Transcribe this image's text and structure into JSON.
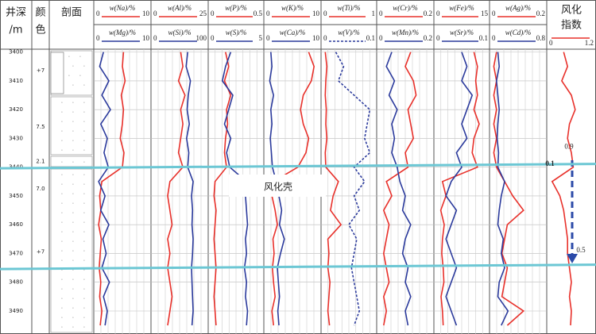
{
  "chart_data": {
    "type": "well-log",
    "ylim": [
      3399,
      3498
    ],
    "yticks": [
      3400,
      3410,
      3420,
      3430,
      3440,
      3450,
      3460,
      3470,
      3480,
      3490
    ],
    "depths": [
      3400,
      3405,
      3410,
      3415,
      3420,
      3425,
      3430,
      3435,
      3440,
      3445,
      3450,
      3455,
      3460,
      3465,
      3470,
      3475,
      3480,
      3485,
      3490,
      3495
    ],
    "depth_header": [
      "井深",
      "/m"
    ],
    "color_header": [
      "颜",
      "色"
    ],
    "section_header": "剖面",
    "layers": [
      {
        "label": "+7",
        "depth": 3406.5
      },
      {
        "label": "7.5",
        "depth": 3426
      },
      {
        "label": "2.1",
        "depth": 3438
      },
      {
        "label": "7.0",
        "depth": 3447.5
      },
      {
        "label": "+7",
        "depth": 3469.5
      }
    ],
    "tracks": [
      {
        "series": [
          {
            "name": "w(Na)/%",
            "xlim": [
              0,
              10
            ],
            "color": "#e8302a",
            "values": [
              5.2,
              5.0,
              5.5,
              4.8,
              5.2,
              5.0,
              4.6,
              5.3,
              5.0,
              1.2,
              0.8,
              1.0,
              0.6,
              1.1,
              0.9,
              0.7,
              1.0,
              0.8,
              1.2,
              0.9
            ]
          },
          {
            "name": "w(Mg)/%",
            "xlim": [
              0,
              10
            ],
            "color": "#2b3a9c",
            "values": [
              1.5,
              0.8,
              2.5,
              1.2,
              2.8,
              1.0,
              2.2,
              1.6,
              2.4,
              0.6,
              1.8,
              1.0,
              2.5,
              1.4,
              2.0,
              1.2,
              2.6,
              1.5,
              2.2,
              1.8
            ]
          }
        ]
      },
      {
        "series": [
          {
            "name": "w(Al)/%",
            "xlim": [
              0,
              25
            ],
            "color": "#e8302a",
            "values": [
              13,
              14,
              12,
              15,
              13,
              14,
              13,
              12,
              14,
              8,
              7,
              8,
              9,
              7,
              8,
              7,
              8,
              9,
              8,
              7
            ]
          },
          {
            "name": "w(Si)/%",
            "xlim": [
              0,
              100
            ],
            "color": "#2b3a9c",
            "values": [
              65,
              62,
              70,
              66,
              64,
              68,
              63,
              67,
              65,
              75,
              72,
              74,
              73,
              75,
              74,
              72,
              73,
              74,
              75,
              73
            ]
          }
        ]
      },
      {
        "series": [
          {
            "name": "w(P)/%",
            "xlim": [
              0,
              0.5
            ],
            "color": "#e8302a",
            "values": [
              0.15,
              0.18,
              0.14,
              0.2,
              0.16,
              0.17,
              0.15,
              0.14,
              0.16,
              0.05,
              0.04,
              0.06,
              0.05,
              0.04,
              0.05,
              0.06,
              0.05,
              0.04,
              0.05,
              0.06
            ]
          },
          {
            "name": "w(S)/%",
            "xlim": [
              0,
              5
            ],
            "color": "#2b3a9c",
            "values": [
              2.0,
              1.5,
              1.2,
              2.2,
              1.8,
              1.4,
              2.0,
              1.6,
              1.9,
              3.5,
              3.4,
              3.5,
              3.6,
              3.4,
              3.5,
              3.3,
              3.5,
              3.4,
              3.6,
              3.5
            ]
          }
        ]
      },
      {
        "series": [
          {
            "name": "w(K)/%",
            "xlim": [
              0,
              10
            ],
            "color": "#e8302a",
            "values": [
              8,
              9,
              8.5,
              7,
              6.5,
              7,
              8,
              7.5,
              6,
              1.5,
              1.2,
              1.8,
              2.2,
              1.4,
              1.6,
              1.3,
              1.5,
              1.8,
              1.2,
              1.5
            ]
          },
          {
            "name": "w(Ca)/%",
            "xlim": [
              0,
              10
            ],
            "color": "#2b3a9c",
            "values": [
              1,
              1.2,
              0.8,
              1.5,
              1,
              1.2,
              0.9,
              1.1,
              1.3,
              2,
              2.5,
              3,
              2.6,
              3.5,
              2.8,
              2.2,
              2.4,
              2.6,
              2.3,
              2.5
            ]
          }
        ]
      },
      {
        "series": [
          {
            "name": "w(Ti)/%",
            "xlim": [
              0,
              1
            ],
            "color": "#e8302a",
            "values": [
              0.05,
              0.08,
              0.06,
              0.05,
              0.07,
              0.06,
              0.08,
              0.05,
              0.06,
              0.3,
              0.2,
              0.15,
              0.35,
              0.1,
              0.12,
              0.1,
              0.14,
              0.12,
              0.1,
              0.13
            ]
          },
          {
            "name": "w(V)/%",
            "xlim": [
              0,
              0.1
            ],
            "color": "#2b3a9c",
            "dash": true,
            "values": [
              0.025,
              0.04,
              0.03,
              0.06,
              0.09,
              0.085,
              0.08,
              0.09,
              0.06,
              0.08,
              0.06,
              0.07,
              0.05,
              0.065,
              0.06,
              0.055,
              0.06,
              0.065,
              0.07,
              0.06
            ]
          }
        ]
      },
      {
        "series": [
          {
            "name": "w(Cr)/%",
            "xlim": [
              0,
              0.2
            ],
            "color": "#e8302a",
            "values": [
              0.12,
              0.1,
              0.13,
              0.14,
              0.11,
              0.12,
              0.13,
              0.1,
              0.11,
              0.03,
              0.05,
              0.02,
              0.04,
              0.03,
              0.02,
              0.03,
              0.04,
              0.02,
              0.03,
              0.02
            ]
          },
          {
            "name": "w(Mn)/%",
            "xlim": [
              0,
              0.2
            ],
            "color": "#2b3a9c",
            "values": [
              0.05,
              0.03,
              0.06,
              0.04,
              0.07,
              0.05,
              0.06,
              0.05,
              0.07,
              0.08,
              0.1,
              0.09,
              0.12,
              0.1,
              0.09,
              0.11,
              0.1,
              0.12,
              0.1,
              0.11
            ]
          }
        ]
      },
      {
        "series": [
          {
            "name": "w(Fe)/%",
            "xlim": [
              0,
              15
            ],
            "color": "#e8302a",
            "values": [
              11,
              12,
              11.5,
              12,
              11,
              12.5,
              11,
              10.5,
              12,
              2,
              3,
              1.5,
              2.5,
              2,
              1.8,
              2.2,
              2.4,
              1.6,
              2,
              2.2
            ]
          },
          {
            "name": "w(Sr)/%",
            "xlim": [
              0,
              0.1
            ],
            "color": "#2b3a9c",
            "values": [
              0.05,
              0.06,
              0.05,
              0.07,
              0.06,
              0.05,
              0.06,
              0.04,
              0.05,
              0.03,
              0.02,
              0.04,
              0.03,
              0.02,
              0.03,
              0.04,
              0.03,
              0.02,
              0.03,
              0.04
            ]
          }
        ]
      },
      {
        "series": [
          {
            "name": "w(Ag)/%",
            "xlim": [
              0,
              0.2
            ],
            "color": "#e8302a",
            "values": [
              0.02,
              0.01,
              0.02,
              0.01,
              0.02,
              0.01,
              0.02,
              0.01,
              0.02,
              0.05,
              0.08,
              0.12,
              0.06,
              0.05,
              0.04,
              0.06,
              0.05,
              0.04,
              0.12,
              0.06
            ]
          },
          {
            "name": "w(Cd)/%",
            "xlim": [
              0,
              0.8
            ],
            "color": "#2b3a9c",
            "values": [
              0.1,
              0.12,
              0.08,
              0.1,
              0.12,
              0.1,
              0.09,
              0.11,
              0.1,
              0.2,
              0.15,
              0.12,
              0.1,
              0.18,
              0.15,
              0.2,
              0.12,
              0.1,
              0.25,
              0.15
            ]
          }
        ]
      }
    ],
    "index_track": {
      "title": [
        "风化",
        "指数"
      ],
      "xlim": [
        0,
        1.2
      ],
      "color": "#e8302a",
      "values": [
        0.4,
        0.5,
        0.35,
        0.6,
        0.7,
        0.55,
        0.5,
        0.6,
        0.65,
        0.1,
        0.3,
        0.4,
        0.45,
        0.5,
        0.5,
        0.55,
        0.6,
        0.55,
        0.6,
        0.58
      ]
    },
    "annotations": [
      {
        "label": "0.9",
        "depth": 3433
      },
      {
        "label": "0.1",
        "depth": 3439
      },
      {
        "label": "0.5",
        "depth": 3469
      }
    ],
    "boundaries": [
      3440,
      3475
    ],
    "boundary_color": "#6cc7d4",
    "crust_label": {
      "label": "风化壳",
      "depth": 3447
    }
  }
}
